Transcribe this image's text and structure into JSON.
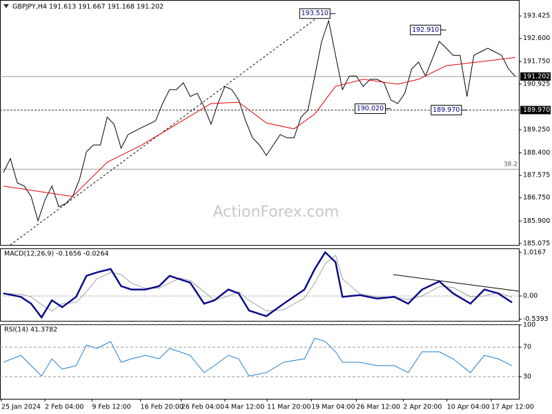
{
  "chart_data": [
    {
      "type": "line",
      "title": "GBPJPY,H4  191.613 191.667 191.168 191.202",
      "watermark": "ActionForex.com",
      "x": [
        0,
        1,
        2,
        3,
        4,
        5,
        6,
        7,
        8,
        9,
        10,
        11,
        12,
        13,
        14,
        15,
        16,
        17,
        18,
        19,
        20,
        21,
        22,
        23,
        24,
        25,
        26,
        27,
        28,
        29,
        30,
        31,
        32,
        33,
        34,
        35,
        36,
        37,
        38,
        39,
        40,
        41,
        42,
        43,
        44,
        45,
        46,
        47,
        48,
        49,
        50,
        51,
        52,
        53,
        54,
        55,
        56,
        57,
        58,
        59,
        60,
        61,
        62,
        63,
        64,
        65,
        66,
        67,
        68,
        69,
        70,
        71,
        72,
        73,
        74
      ],
      "xlim": [
        -0.5,
        74.5
      ],
      "series": [
        {
          "color": "#000000",
          "values": [
            187.68,
            188.19,
            187.3,
            187.18,
            186.8,
            185.91,
            186.67,
            187.18,
            186.42,
            186.54,
            186.8,
            187.43,
            188.44,
            188.69,
            188.69,
            189.71,
            189.45,
            188.57,
            189.07,
            189.2,
            189.33,
            189.45,
            189.58,
            190.21,
            190.72,
            190.72,
            190.97,
            190.47,
            190.59,
            190.09,
            189.45,
            190.21,
            190.84,
            190.72,
            190.34,
            189.58,
            188.95,
            188.69,
            188.31,
            188.69,
            189.07,
            188.95,
            188.95,
            189.71,
            189.96,
            191.22,
            192.49,
            193.25,
            191.98,
            190.72,
            191.22,
            191.22,
            190.84,
            191.1,
            191.1,
            190.97,
            190.34,
            190.21,
            190.59,
            191.48,
            191.73,
            191.22,
            191.86,
            192.49,
            192.24,
            191.98,
            191.98,
            190.47,
            191.98,
            192.11,
            192.24,
            192.11,
            191.98,
            191.48,
            191.2
          ]
        },
        {
          "color": "#e00000",
          "x": [
            0,
            10,
            15,
            20,
            25,
            30,
            34,
            38,
            42,
            45,
            48,
            52,
            57,
            60,
            64,
            70,
            74
          ],
          "values": [
            187.18,
            186.8,
            188.06,
            188.69,
            189.45,
            190.21,
            190.26,
            189.5,
            189.28,
            189.83,
            190.84,
            191.1,
            190.92,
            191.1,
            191.6,
            191.78,
            191.9
          ]
        }
      ],
      "ylim": [
        185.02,
        194.01
      ],
      "yticks": [
        185.075,
        {
          "value": 185.9,
          "label": "185.900"
        },
        {
          "value": 186.75,
          "label": "186.750"
        },
        187.575,
        {
          "value": 188.4,
          "label": "188.400"
        },
        {
          "value": 189.25,
          "label": "189.250"
        },
        190.925,
        {
          "value": 191.75,
          "label": "191.750"
        },
        {
          "value": 192.6,
          "label": "192.600"
        },
        193.425
      ],
      "levels": [
        {
          "value": 191.202,
          "style": "solid",
          "marker": true
        },
        {
          "value": 189.97,
          "label": "189.970",
          "style": "dashed",
          "marker": true
        },
        {
          "value": 187.8,
          "label": "38.2",
          "style": "solid",
          "marker": false
        }
      ],
      "annotations": [
        {
          "x": 48,
          "value": 193.51,
          "label": "193.510",
          "side": "left"
        },
        {
          "x": 64,
          "value": 192.91,
          "label": "192.910",
          "side": "left"
        },
        {
          "x": 56,
          "value": 190.02,
          "label": "190.020",
          "side": "left"
        },
        {
          "x": 67,
          "value": 189.97,
          "label": "189.970",
          "side": "left"
        }
      ]
    },
    {
      "type": "line",
      "title": "MACD(12,26,9) -0.1656 -0.0264",
      "x": [
        0,
        2.5,
        4,
        5.5,
        7,
        8.5,
        10.5,
        12,
        13.5,
        15.5,
        17,
        18.5,
        20.5,
        22.5,
        24,
        25.5,
        27,
        29,
        30.5,
        32.5,
        34,
        35.5,
        38,
        40.5,
        43.5,
        45,
        46.5,
        48,
        49,
        51.5,
        54,
        56.5,
        58.5,
        60.5,
        63,
        65,
        67.5,
        69.5,
        71.5,
        73.5
      ],
      "xlim": [
        -0.5,
        74.5
      ],
      "series": [
        {
          "color": "#a0a0a0",
          "values": [
            0.06,
            0.04,
            -0.02,
            -0.2,
            -0.35,
            -0.18,
            -0.15,
            0.1,
            0.4,
            0.55,
            0.5,
            0.3,
            0.18,
            0.18,
            0.3,
            0.42,
            0.36,
            0.1,
            -0.1,
            0.0,
            0.1,
            -0.1,
            -0.35,
            -0.32,
            -0.05,
            0.3,
            0.75,
            0.95,
            0.4,
            0.05,
            -0.02,
            -0.03,
            -0.08,
            0.0,
            0.22,
            0.2,
            -0.02,
            0.0,
            0.08,
            -0.03
          ]
        },
        {
          "color": "#0a0a8c",
          "width": 2.5,
          "values": [
            0.06,
            -0.02,
            -0.18,
            -0.5,
            -0.1,
            -0.26,
            -0.02,
            0.47,
            0.55,
            0.63,
            0.23,
            0.15,
            0.15,
            0.23,
            0.47,
            0.39,
            0.31,
            -0.18,
            -0.1,
            0.15,
            0.06,
            -0.34,
            -0.47,
            -0.18,
            0.15,
            0.63,
            1.02,
            0.79,
            -0.02,
            0.02,
            -0.06,
            -0.02,
            -0.18,
            0.15,
            0.34,
            0.06,
            -0.18,
            0.15,
            0.06,
            -0.15
          ]
        }
      ],
      "ylim": [
        -0.58,
        1.11
      ],
      "yticks": [
        1.0167,
        {
          "value": 0,
          "label": "0.00"
        },
        -0.5393
      ],
      "zero_line": true
    },
    {
      "type": "line",
      "title": "RSI(14) 41.3782",
      "x": [
        0,
        2.5,
        4,
        5.5,
        7,
        8.5,
        10.5,
        12,
        13.5,
        15.5,
        17,
        18.5,
        20.5,
        22.5,
        24,
        25.5,
        27,
        29,
        30.5,
        32.5,
        34,
        35.5,
        38,
        40.5,
        43.5,
        45,
        46.5,
        48,
        49,
        51.5,
        54,
        56.5,
        58.5,
        60.5,
        63,
        65,
        67.5,
        69.5,
        71.5,
        73.5
      ],
      "xlim": [
        -0.5,
        74.5
      ],
      "series": [
        {
          "color": "#1f7fd0",
          "values": [
            49.5,
            58.9,
            44.9,
            30.8,
            54.2,
            40.2,
            44.9,
            72.9,
            68.2,
            77.6,
            49.5,
            54.2,
            58.9,
            54.2,
            68.2,
            63.6,
            58.9,
            35.5,
            44.9,
            58.9,
            54.2,
            30.8,
            35.5,
            49.5,
            54.2,
            82.2,
            77.6,
            63.6,
            49.5,
            49.5,
            44.9,
            44.9,
            35.5,
            63.6,
            63.6,
            54.2,
            35.5,
            58.9,
            54.2,
            44.9
          ]
        }
      ],
      "ylim": [
        0,
        100.9
      ],
      "yticks": [
        100,
        70,
        30
      ],
      "tick_lines": "dashed",
      "xticks": [
        {
          "value": -0.3,
          "label": "25 Jan 2024"
        },
        {
          "value": 6,
          "label": "2 Feb 04:00"
        },
        {
          "value": 12.8,
          "label": "9 Feb 12:00"
        },
        {
          "value": 19.8,
          "label": "16 Feb 20:00"
        },
        {
          "value": 25.7,
          "label": "26 Feb 04:00"
        },
        {
          "value": 32,
          "label": "4 Mar 12:00"
        },
        {
          "value": 38.1,
          "label": "11 Mar 20:00"
        },
        {
          "value": 44.5,
          "label": "19 Mar 04:00"
        },
        {
          "value": 51,
          "label": "26 Mar 12:00"
        },
        {
          "value": 57.8,
          "label": "2 Apr 20:00"
        },
        {
          "value": 64.1,
          "label": "10 Apr 04:00"
        },
        {
          "value": 70.5,
          "label": "17 Apr 12:00"
        }
      ]
    }
  ]
}
